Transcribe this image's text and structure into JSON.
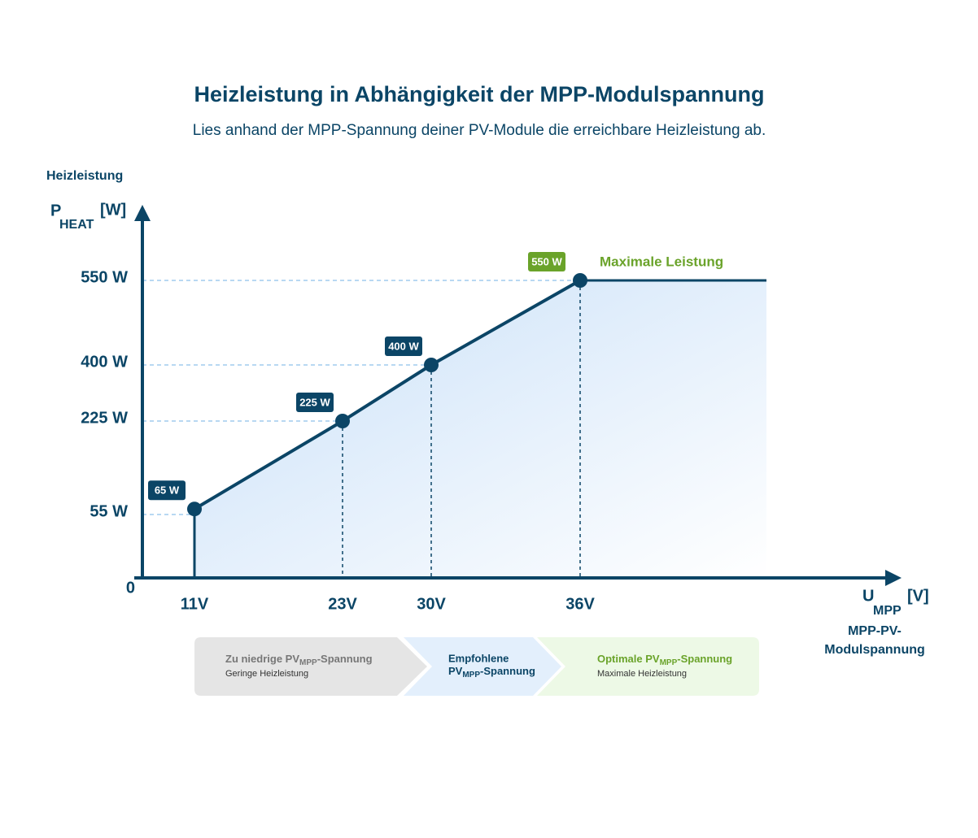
{
  "chart_data": {
    "type": "line",
    "title": "Heizleistung in Abhängigkeit der MPP-Modulspannung",
    "subtitle": "Lies anhand der MPP-Spannung deiner PV-Module die erreichbare Heizleistung ab.",
    "y_axis_label": "Heizleistung",
    "y_axis_symbol": {
      "main": "P",
      "sub": "HEAT",
      "unit": "[W]"
    },
    "x_axis_symbol": {
      "main": "U",
      "sub": "MPP",
      "unit": "[V]"
    },
    "x_axis_label": [
      "MPP-PV-",
      "Modulspannung"
    ],
    "x": [
      11,
      23,
      30,
      36
    ],
    "xticks": [
      {
        "value": 11,
        "label": "11V"
      },
      {
        "value": 23,
        "label": "23V"
      },
      {
        "value": 30,
        "label": "30V"
      },
      {
        "value": 36,
        "label": "36V"
      }
    ],
    "yticks": [
      0,
      {
        "value": 55,
        "label": "55 W"
      },
      {
        "value": 225,
        "label": "225 W"
      },
      {
        "value": 400,
        "label": "400 W"
      },
      {
        "value": 550,
        "label": "550 W"
      }
    ],
    "series": [
      {
        "name": "Heizleistung",
        "color": "#0b4566",
        "highlight_color": "#6aa32a",
        "values": [
          65,
          225,
          400,
          550
        ],
        "value_labels": [
          "65 W",
          "225 W",
          "400 W",
          "550 W"
        ]
      }
    ],
    "annotation": "Maximale Leistung",
    "zones": [
      {
        "pre": "Zu niedrige PV",
        "sub": "MPP",
        "post": "-Spannung",
        "note": "Geringe Heizleistung"
      },
      {
        "head": "Empfohlene",
        "pre": "PV",
        "sub": "MPP",
        "post": "-Spannung"
      },
      {
        "pre": "Optimale PV",
        "sub": "MPP",
        "post": "-Spannung",
        "note": "Maximale Heizleistung"
      }
    ]
  }
}
